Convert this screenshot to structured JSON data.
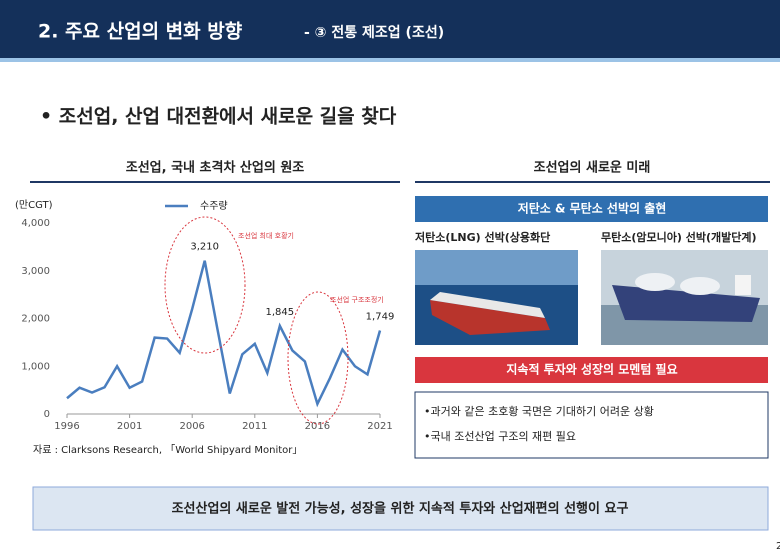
{
  "header": {
    "title": "2. 주요 산업의 변화 방향",
    "subtitle": "- ③ 전통 제조업 (조선)"
  },
  "headline": "• 조선업, 산업 대전환에서 새로운 길을 찾다",
  "left_panel": {
    "title": "조선업, 국내 초격차 산업의 원조",
    "source": "자료 : Clarksons Research, 「World Shipyard Monitor」"
  },
  "chart_data": {
    "type": "line",
    "y_label": "(만CGT)",
    "x": [
      1996,
      1997,
      1998,
      1999,
      2000,
      2001,
      2002,
      2003,
      2004,
      2005,
      2006,
      2007,
      2008,
      2009,
      2010,
      2011,
      2012,
      2013,
      2014,
      2015,
      2016,
      2017,
      2018,
      2019,
      2020,
      2021
    ],
    "series": [
      {
        "name": "수주량",
        "color": "#4a7ebf",
        "values": [
          330,
          550,
          450,
          560,
          1000,
          550,
          680,
          1600,
          1580,
          1280,
          2200,
          3210,
          1800,
          430,
          1250,
          1470,
          860,
          1845,
          1330,
          1100,
          210,
          750,
          1350,
          1000,
          830,
          1749
        ],
        "value_labels": [
          null,
          null,
          null,
          null,
          null,
          null,
          null,
          null,
          null,
          null,
          null,
          "3,210",
          null,
          null,
          null,
          null,
          null,
          "1,845",
          null,
          null,
          null,
          null,
          null,
          null,
          null,
          "1,749"
        ]
      }
    ],
    "xlim": [
      1996,
      2021
    ],
    "xticks": [
      1996,
      2001,
      2006,
      2011,
      2016,
      2021
    ],
    "ylim": [
      0,
      4000
    ],
    "yticks": [
      0,
      {
        "value": 1000,
        "label": "1,000"
      },
      {
        "value": 2000,
        "label": "2,000"
      },
      {
        "value": 3000,
        "label": "3,000"
      },
      {
        "value": 4000,
        "label": "4,000"
      }
    ],
    "annotations": [
      "조선업 최대 호황기",
      "조선업 구조조정기"
    ]
  },
  "right_panel": {
    "title": "조선업의 새로운 미래",
    "banner": "저탄소 & 무탄소 선박의 출현",
    "ship_left": "저탄소(LNG) 선박(상용화단",
    "ship_right": "무탄소(암모니아) 선박(개발단계)",
    "need": "지속적 투자와 성장의 모멘텀 필요",
    "points": [
      "•과거와 같은 초호황 국면은 기대하기 어려운 상황",
      "•국내 조선산업 구조의 재편 필요"
    ]
  },
  "footer": "조선산업의 새로운 발전 가능성, 성장을 위한 지속적 투자와 산업재편의 선행이 요구",
  "page_number": "2"
}
